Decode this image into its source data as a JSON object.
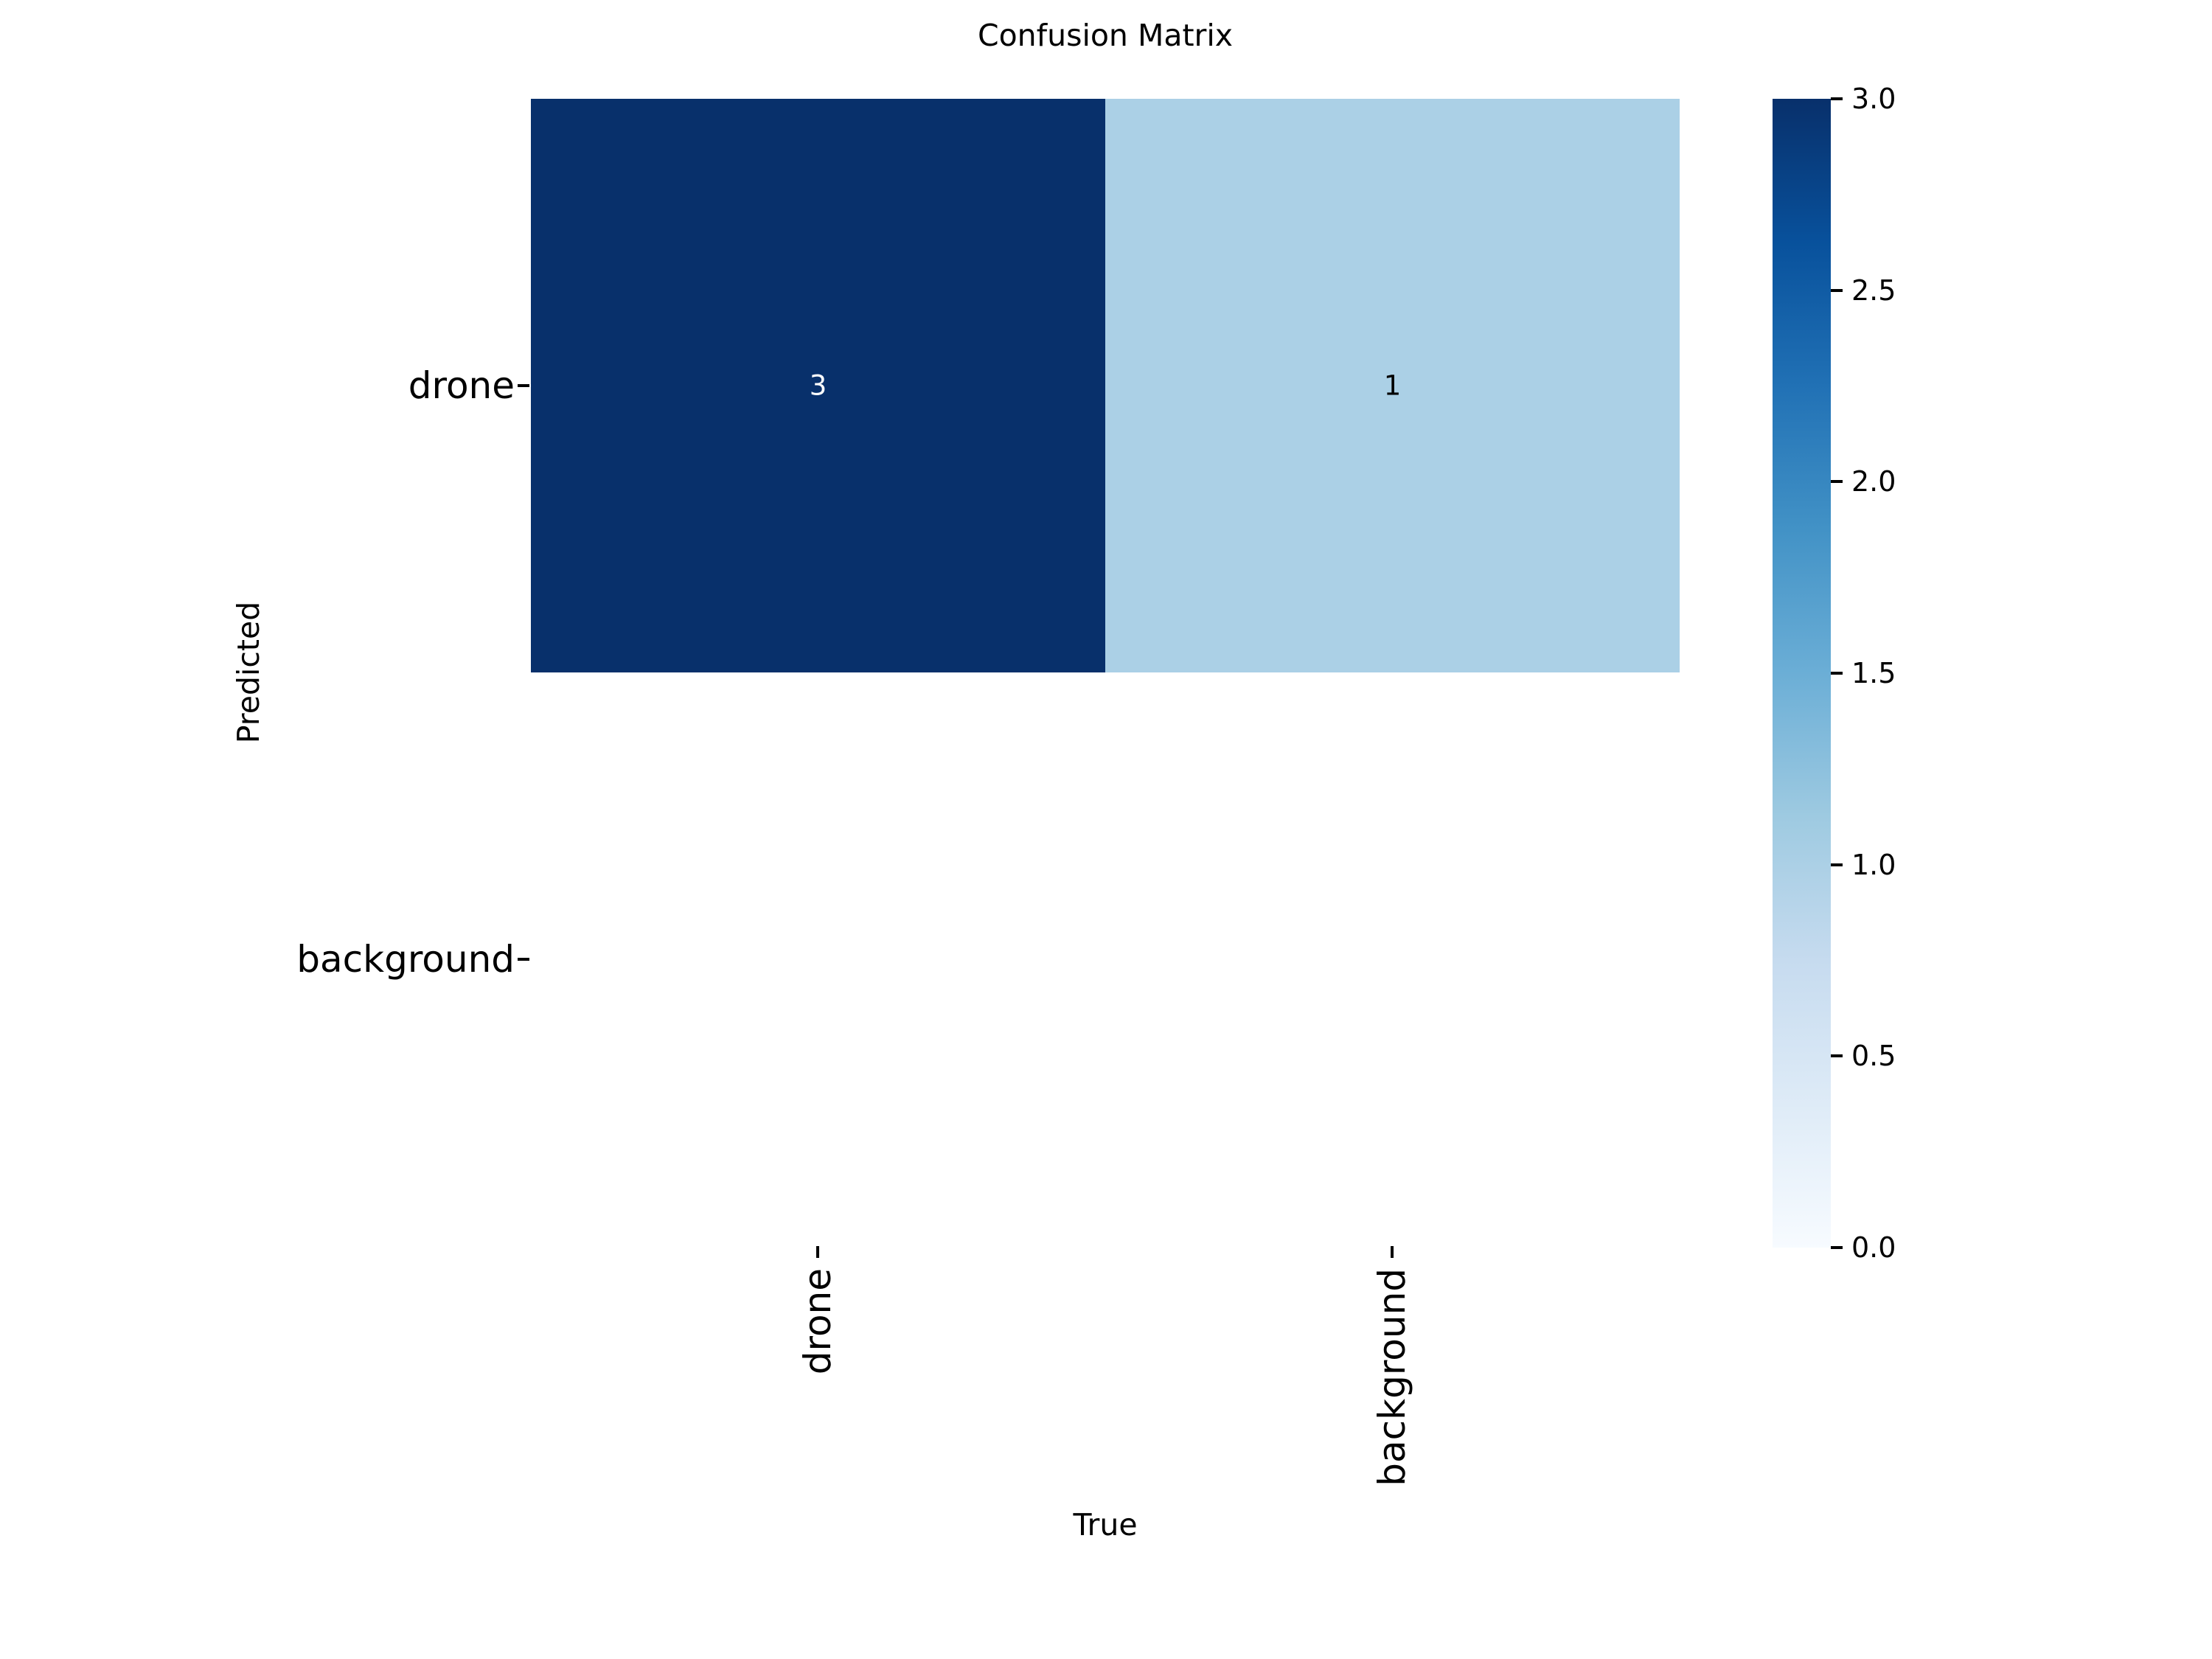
{
  "chart_data": {
    "type": "heatmap",
    "title": "Confusion Matrix",
    "xlabel": "True",
    "ylabel": "Predicted",
    "x_categories": [
      "drone",
      "background"
    ],
    "y_categories": [
      "drone",
      "background"
    ],
    "matrix": [
      [
        3,
        1
      ],
      [
        null,
        null
      ]
    ],
    "annotations": [
      [
        "3",
        "1"
      ],
      [
        "",
        ""
      ]
    ],
    "cell_colors": [
      [
        "#08306b",
        "#abd0e6"
      ],
      [
        "#ffffff",
        "#ffffff"
      ]
    ],
    "annotation_colors": [
      [
        "#ffffff",
        "#000000"
      ],
      [
        "#000000",
        "#000000"
      ]
    ],
    "colormap": "Blues",
    "colormap_stops": [
      "#08306b",
      "#08519c",
      "#2171b5",
      "#4292c6",
      "#6baed6",
      "#9ecae1",
      "#c6dbef",
      "#deebf7",
      "#f7fbff"
    ],
    "colorbar": {
      "min": 0.0,
      "max": 3.0,
      "ticks": [
        "3.0",
        "2.5",
        "2.0",
        "1.5",
        "1.0",
        "0.5",
        "0.0"
      ],
      "position": "right"
    },
    "grid": false,
    "axes_background": "#ffffff"
  }
}
